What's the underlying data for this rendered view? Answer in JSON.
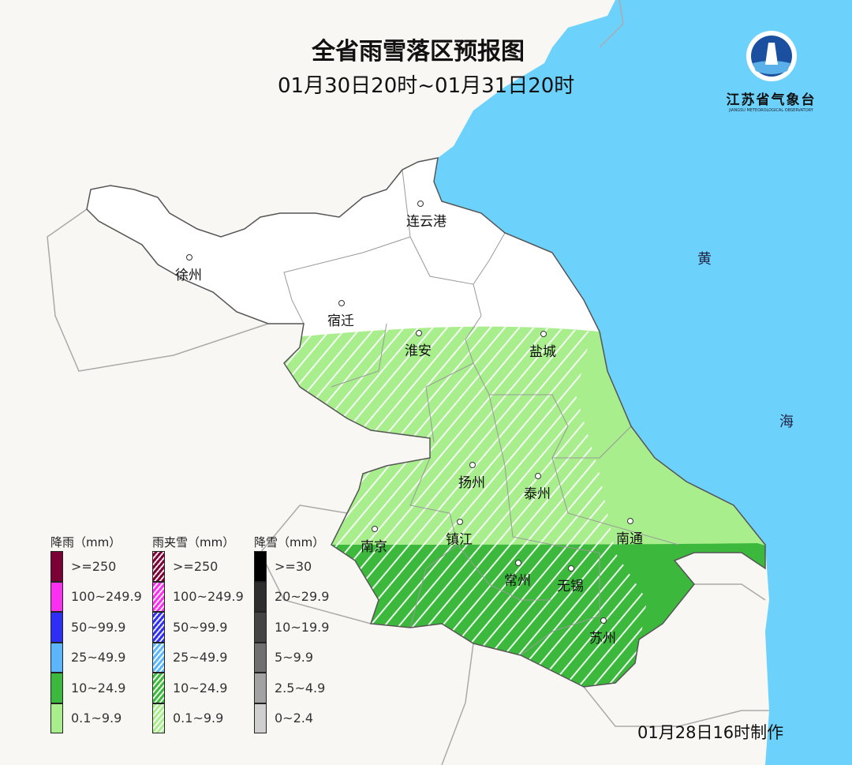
{
  "title": "全省雨雪落区预报图",
  "subtitle": "01月30日20时~01月31日20时",
  "issued": "01月28日16时制作",
  "logo": {
    "name": "江苏省气象台",
    "english": "JIANGSU METEOROLOGICAL OBSERVATORY",
    "ring_text": "江苏省气象台"
  },
  "sea_labels": [
    "黄",
    "海"
  ],
  "cities": [
    "连云港",
    "徐州",
    "宿迁",
    "淮安",
    "盐城",
    "扬州",
    "泰州",
    "南通",
    "南京",
    "镇江",
    "常州",
    "无锡",
    "苏州"
  ],
  "colors": {
    "sea": "#6cd2fc",
    "land_outside": "#f8f7f4",
    "no_precip": "#ffffff",
    "light": "#a8ee8c",
    "moderate": "#3cb93c"
  },
  "legend": [
    {
      "title": "降雨（mm）",
      "hatched": false,
      "items": [
        {
          "label": ">=250",
          "color": "#7a0036"
        },
        {
          "label": "100~249.9",
          "color": "#fb2ff0"
        },
        {
          "label": "50~99.9",
          "color": "#2e2ef6"
        },
        {
          "label": "25~49.9",
          "color": "#5cb6fc"
        },
        {
          "label": "10~24.9",
          "color": "#3cb93c"
        },
        {
          "label": "0.1~9.9",
          "color": "#a8ee8c"
        }
      ]
    },
    {
      "title": "雨夹雪（mm）",
      "hatched": true,
      "items": [
        {
          "label": ">=250",
          "color": "#7a0036"
        },
        {
          "label": "100~249.9",
          "color": "#fb2ff0"
        },
        {
          "label": "50~99.9",
          "color": "#2e2ef6"
        },
        {
          "label": "25~49.9",
          "color": "#5cb6fc"
        },
        {
          "label": "10~24.9",
          "color": "#3cb93c"
        },
        {
          "label": "0.1~9.9",
          "color": "#a8ee8c"
        }
      ]
    },
    {
      "title": "降雪（mm）",
      "hatched": false,
      "items": [
        {
          "label": ">=30",
          "color": "#000000"
        },
        {
          "label": "20~29.9",
          "color": "#2e2e2e"
        },
        {
          "label": "10~19.9",
          "color": "#444444"
        },
        {
          "label": "5~9.9",
          "color": "#707070"
        },
        {
          "label": "2.5~4.9",
          "color": "#a2a2a2"
        },
        {
          "label": "0~2.4",
          "color": "#cfcfcf"
        }
      ]
    }
  ]
}
